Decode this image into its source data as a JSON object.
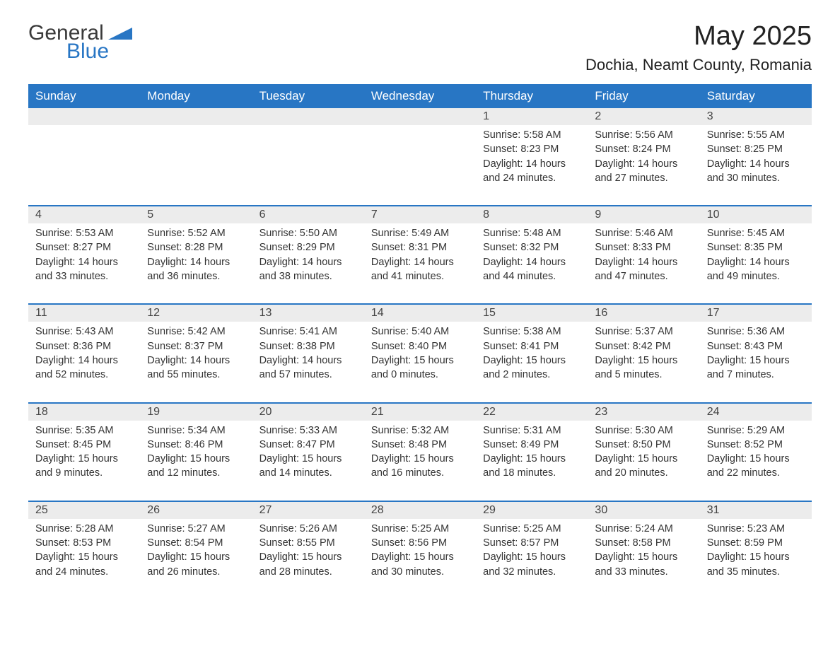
{
  "brand": {
    "general": "General",
    "blue": "Blue"
  },
  "title": "May 2025",
  "location": "Dochia, Neamt County, Romania",
  "colors": {
    "header_bg": "#2876c4",
    "header_text": "#ffffff",
    "daynum_bg": "#ececec",
    "rule": "#2876c4",
    "text": "#333333"
  },
  "weekdays": [
    "Sunday",
    "Monday",
    "Tuesday",
    "Wednesday",
    "Thursday",
    "Friday",
    "Saturday"
  ],
  "weeks": [
    [
      {
        "n": "",
        "sr": "",
        "ss": "",
        "dl": ""
      },
      {
        "n": "",
        "sr": "",
        "ss": "",
        "dl": ""
      },
      {
        "n": "",
        "sr": "",
        "ss": "",
        "dl": ""
      },
      {
        "n": "",
        "sr": "",
        "ss": "",
        "dl": ""
      },
      {
        "n": "1",
        "sr": "Sunrise: 5:58 AM",
        "ss": "Sunset: 8:23 PM",
        "dl": "Daylight: 14 hours and 24 minutes."
      },
      {
        "n": "2",
        "sr": "Sunrise: 5:56 AM",
        "ss": "Sunset: 8:24 PM",
        "dl": "Daylight: 14 hours and 27 minutes."
      },
      {
        "n": "3",
        "sr": "Sunrise: 5:55 AM",
        "ss": "Sunset: 8:25 PM",
        "dl": "Daylight: 14 hours and 30 minutes."
      }
    ],
    [
      {
        "n": "4",
        "sr": "Sunrise: 5:53 AM",
        "ss": "Sunset: 8:27 PM",
        "dl": "Daylight: 14 hours and 33 minutes."
      },
      {
        "n": "5",
        "sr": "Sunrise: 5:52 AM",
        "ss": "Sunset: 8:28 PM",
        "dl": "Daylight: 14 hours and 36 minutes."
      },
      {
        "n": "6",
        "sr": "Sunrise: 5:50 AM",
        "ss": "Sunset: 8:29 PM",
        "dl": "Daylight: 14 hours and 38 minutes."
      },
      {
        "n": "7",
        "sr": "Sunrise: 5:49 AM",
        "ss": "Sunset: 8:31 PM",
        "dl": "Daylight: 14 hours and 41 minutes."
      },
      {
        "n": "8",
        "sr": "Sunrise: 5:48 AM",
        "ss": "Sunset: 8:32 PM",
        "dl": "Daylight: 14 hours and 44 minutes."
      },
      {
        "n": "9",
        "sr": "Sunrise: 5:46 AM",
        "ss": "Sunset: 8:33 PM",
        "dl": "Daylight: 14 hours and 47 minutes."
      },
      {
        "n": "10",
        "sr": "Sunrise: 5:45 AM",
        "ss": "Sunset: 8:35 PM",
        "dl": "Daylight: 14 hours and 49 minutes."
      }
    ],
    [
      {
        "n": "11",
        "sr": "Sunrise: 5:43 AM",
        "ss": "Sunset: 8:36 PM",
        "dl": "Daylight: 14 hours and 52 minutes."
      },
      {
        "n": "12",
        "sr": "Sunrise: 5:42 AM",
        "ss": "Sunset: 8:37 PM",
        "dl": "Daylight: 14 hours and 55 minutes."
      },
      {
        "n": "13",
        "sr": "Sunrise: 5:41 AM",
        "ss": "Sunset: 8:38 PM",
        "dl": "Daylight: 14 hours and 57 minutes."
      },
      {
        "n": "14",
        "sr": "Sunrise: 5:40 AM",
        "ss": "Sunset: 8:40 PM",
        "dl": "Daylight: 15 hours and 0 minutes."
      },
      {
        "n": "15",
        "sr": "Sunrise: 5:38 AM",
        "ss": "Sunset: 8:41 PM",
        "dl": "Daylight: 15 hours and 2 minutes."
      },
      {
        "n": "16",
        "sr": "Sunrise: 5:37 AM",
        "ss": "Sunset: 8:42 PM",
        "dl": "Daylight: 15 hours and 5 minutes."
      },
      {
        "n": "17",
        "sr": "Sunrise: 5:36 AM",
        "ss": "Sunset: 8:43 PM",
        "dl": "Daylight: 15 hours and 7 minutes."
      }
    ],
    [
      {
        "n": "18",
        "sr": "Sunrise: 5:35 AM",
        "ss": "Sunset: 8:45 PM",
        "dl": "Daylight: 15 hours and 9 minutes."
      },
      {
        "n": "19",
        "sr": "Sunrise: 5:34 AM",
        "ss": "Sunset: 8:46 PM",
        "dl": "Daylight: 15 hours and 12 minutes."
      },
      {
        "n": "20",
        "sr": "Sunrise: 5:33 AM",
        "ss": "Sunset: 8:47 PM",
        "dl": "Daylight: 15 hours and 14 minutes."
      },
      {
        "n": "21",
        "sr": "Sunrise: 5:32 AM",
        "ss": "Sunset: 8:48 PM",
        "dl": "Daylight: 15 hours and 16 minutes."
      },
      {
        "n": "22",
        "sr": "Sunrise: 5:31 AM",
        "ss": "Sunset: 8:49 PM",
        "dl": "Daylight: 15 hours and 18 minutes."
      },
      {
        "n": "23",
        "sr": "Sunrise: 5:30 AM",
        "ss": "Sunset: 8:50 PM",
        "dl": "Daylight: 15 hours and 20 minutes."
      },
      {
        "n": "24",
        "sr": "Sunrise: 5:29 AM",
        "ss": "Sunset: 8:52 PM",
        "dl": "Daylight: 15 hours and 22 minutes."
      }
    ],
    [
      {
        "n": "25",
        "sr": "Sunrise: 5:28 AM",
        "ss": "Sunset: 8:53 PM",
        "dl": "Daylight: 15 hours and 24 minutes."
      },
      {
        "n": "26",
        "sr": "Sunrise: 5:27 AM",
        "ss": "Sunset: 8:54 PM",
        "dl": "Daylight: 15 hours and 26 minutes."
      },
      {
        "n": "27",
        "sr": "Sunrise: 5:26 AM",
        "ss": "Sunset: 8:55 PM",
        "dl": "Daylight: 15 hours and 28 minutes."
      },
      {
        "n": "28",
        "sr": "Sunrise: 5:25 AM",
        "ss": "Sunset: 8:56 PM",
        "dl": "Daylight: 15 hours and 30 minutes."
      },
      {
        "n": "29",
        "sr": "Sunrise: 5:25 AM",
        "ss": "Sunset: 8:57 PM",
        "dl": "Daylight: 15 hours and 32 minutes."
      },
      {
        "n": "30",
        "sr": "Sunrise: 5:24 AM",
        "ss": "Sunset: 8:58 PM",
        "dl": "Daylight: 15 hours and 33 minutes."
      },
      {
        "n": "31",
        "sr": "Sunrise: 5:23 AM",
        "ss": "Sunset: 8:59 PM",
        "dl": "Daylight: 15 hours and 35 minutes."
      }
    ]
  ]
}
